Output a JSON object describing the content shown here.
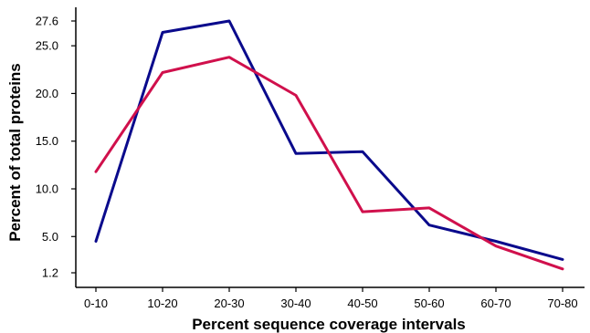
{
  "chart_data": {
    "type": "line",
    "title": "",
    "xlabel": "Percent sequence coverage intervals",
    "ylabel": "Percent of total proteins",
    "categories": [
      "0-10",
      "10-20",
      "20-30",
      "30-40",
      "40-50",
      "50-60",
      "60-70",
      "70-80"
    ],
    "yticks": [
      "1.2",
      "5.0",
      "10.0",
      "15.0",
      "20.0",
      "25.0",
      "27.6"
    ],
    "ylim": [
      1.2,
      27.6
    ],
    "grid": false,
    "legend": "none",
    "series": [
      {
        "color": "#0a0a8c",
        "values": [
          4.5,
          26.4,
          27.6,
          13.7,
          13.9,
          6.2,
          4.5,
          2.6
        ]
      },
      {
        "color": "#d0104c",
        "values": [
          11.8,
          22.2,
          23.8,
          19.8,
          7.6,
          8.0,
          4.0,
          1.6
        ]
      }
    ]
  }
}
